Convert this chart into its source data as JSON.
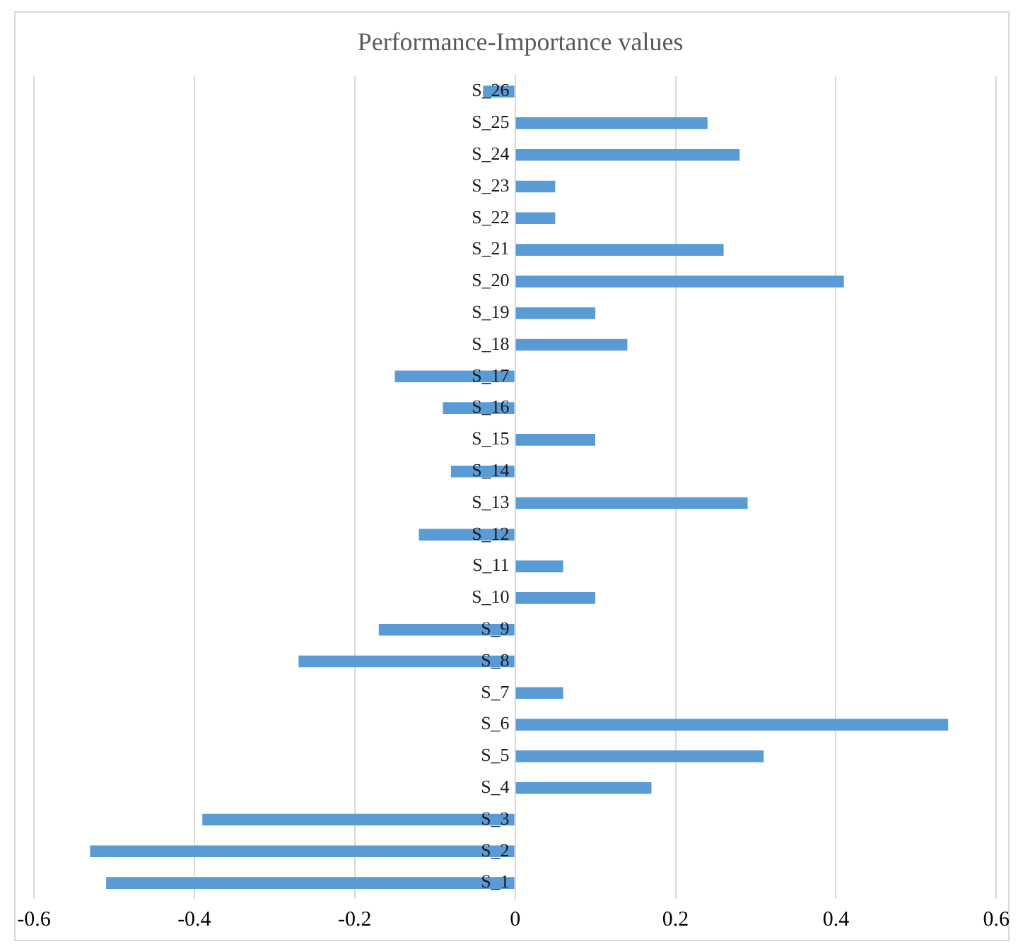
{
  "chart_data": {
    "type": "bar",
    "orientation": "horizontal",
    "title": "Performance-Importance values",
    "categories": [
      "S_26",
      "S_25",
      "S_24",
      "S_23",
      "S_22",
      "S_21",
      "S_20",
      "S_19",
      "S_18",
      "S_17",
      "S_16",
      "S_15",
      "S_14",
      "S_13",
      "S_12",
      "S_11",
      "S_10",
      "S_9",
      "S_8",
      "S_7",
      "S_6",
      "S_5",
      "S_4",
      "S_3",
      "S_2",
      "S_1"
    ],
    "values": [
      -0.04,
      0.24,
      0.28,
      0.05,
      0.05,
      0.26,
      0.41,
      0.1,
      0.14,
      -0.15,
      -0.09,
      0.1,
      -0.08,
      0.29,
      -0.12,
      0.06,
      0.1,
      -0.17,
      -0.27,
      0.06,
      0.54,
      0.31,
      0.17,
      -0.39,
      -0.53,
      -0.51
    ],
    "color": "#5b9bd5",
    "xlim": [
      -0.6,
      0.6
    ],
    "xticks": [
      -0.6,
      -0.4,
      -0.2,
      0,
      0.2,
      0.4,
      0.6
    ],
    "grid": "x"
  }
}
